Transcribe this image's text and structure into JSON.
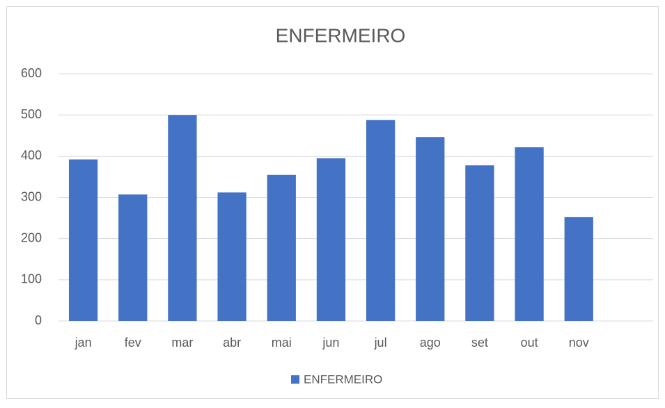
{
  "chart_data": {
    "type": "bar",
    "title": "ENFERMEIRO",
    "categories": [
      "jan",
      "fev",
      "mar",
      "abr",
      "mai",
      "jun",
      "jul",
      "ago",
      "set",
      "out",
      "nov",
      null
    ],
    "series": [
      {
        "name": "ENFERMEIRO",
        "color": "#4472c4",
        "values": [
          392,
          307,
          500,
          312,
          355,
          395,
          488,
          446,
          378,
          422,
          252,
          null
        ]
      }
    ],
    "ylim": [
      0,
      600
    ],
    "yticks": [
      0,
      100,
      200,
      300,
      400,
      500,
      600
    ],
    "grid": true,
    "legend": "bottom"
  }
}
